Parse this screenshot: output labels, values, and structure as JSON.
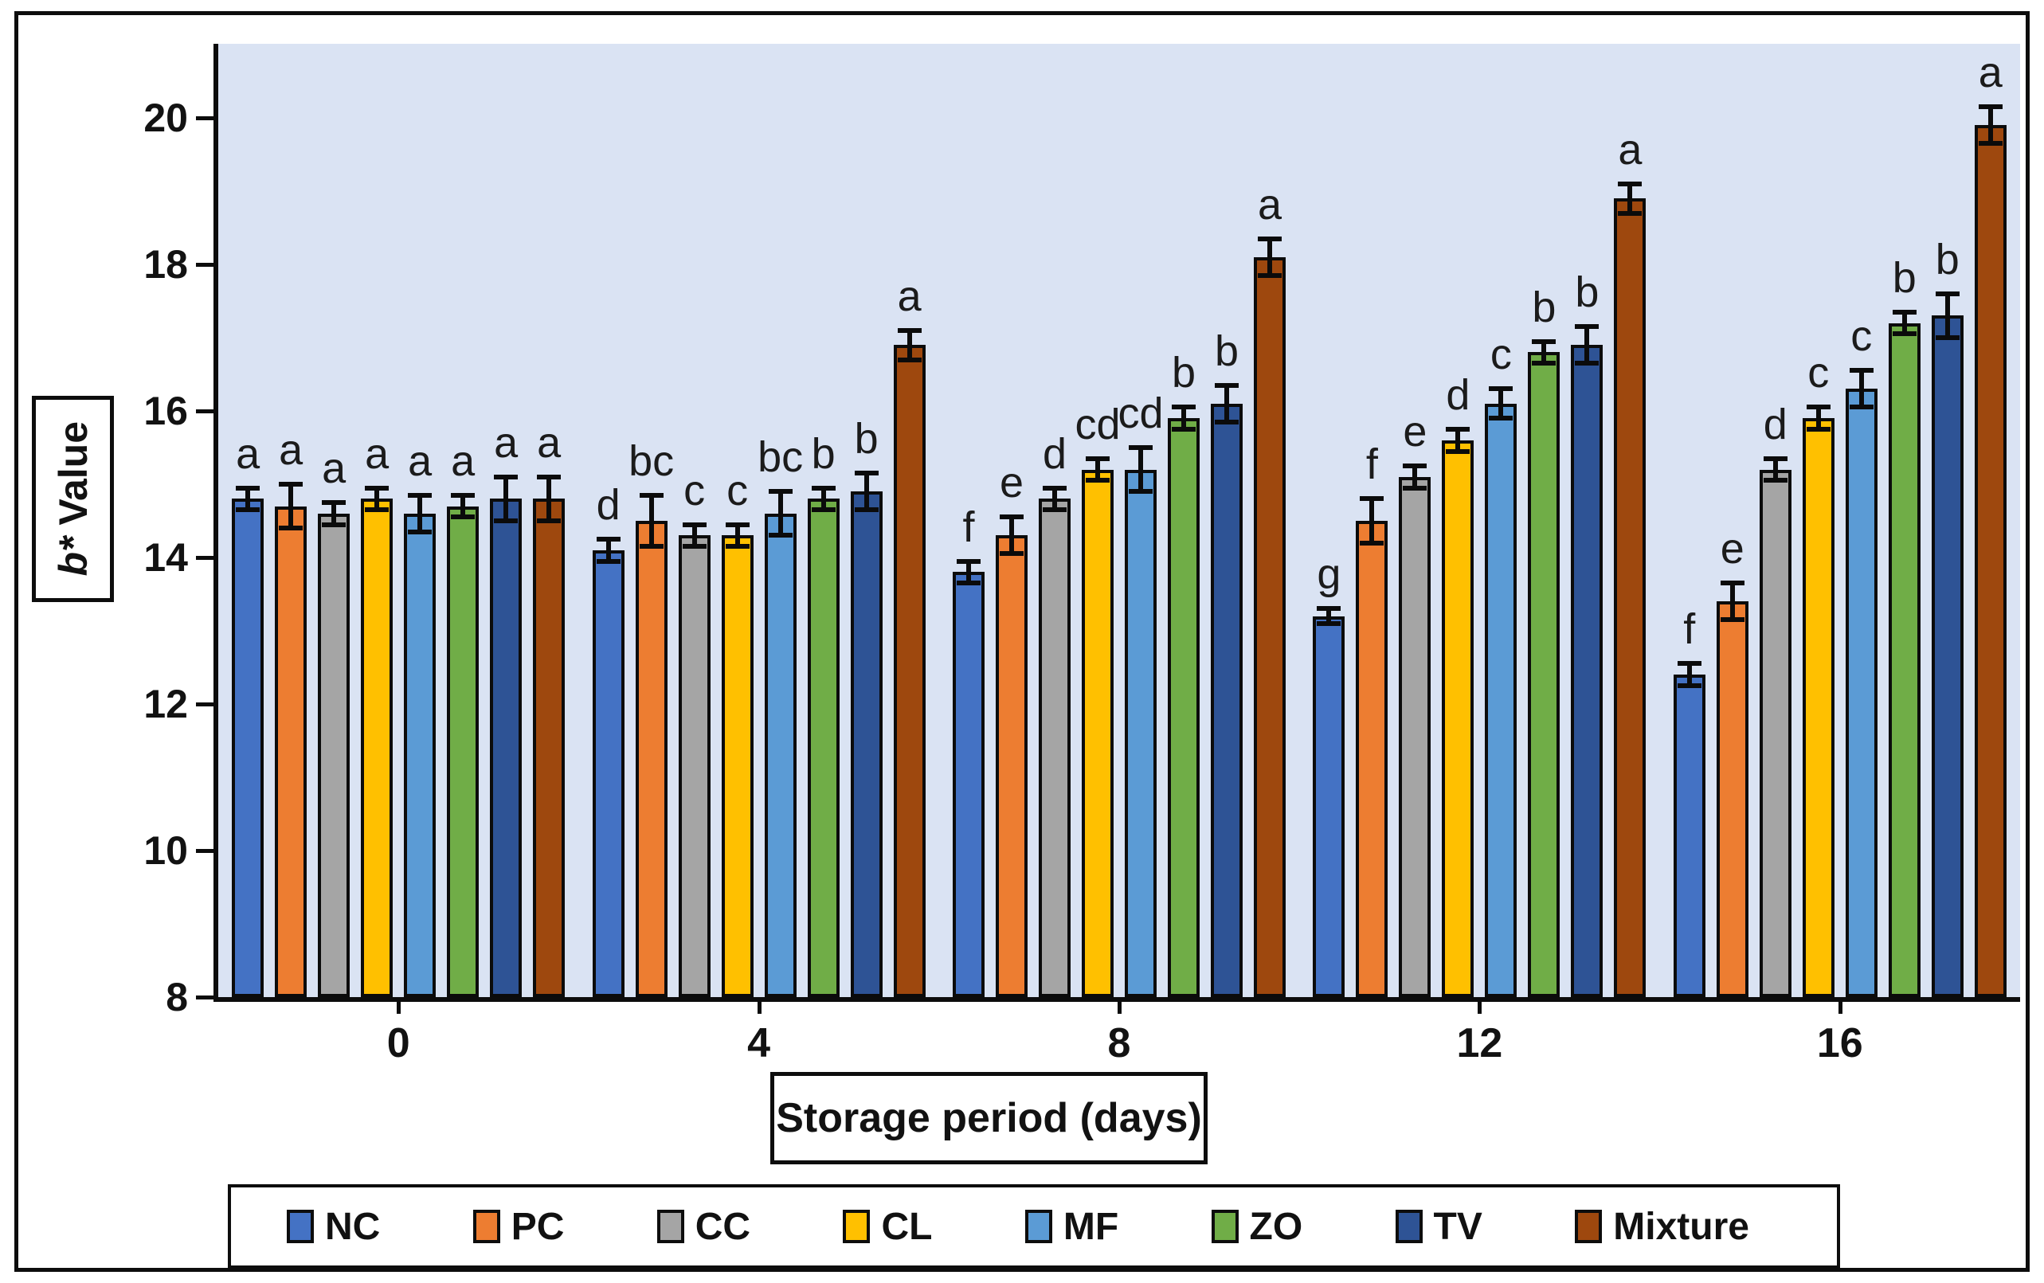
{
  "labels": {
    "y_title_italic": "b*",
    "y_title_rest": " Value",
    "x_title": "Storage period (days)"
  },
  "chart_data": {
    "type": "bar",
    "title": "",
    "xlabel": "Storage period (days)",
    "ylabel": "b* Value",
    "ylim": [
      8,
      21
    ],
    "yticks": [
      8,
      10,
      12,
      14,
      16,
      18,
      20
    ],
    "grid": false,
    "plot_bg": "#dae3f3",
    "legend_position": "bottom",
    "categories": [
      "0",
      "4",
      "8",
      "12",
      "16"
    ],
    "series": [
      {
        "name": "NC",
        "color": "#4472C4",
        "values": [
          14.8,
          14.1,
          13.8,
          13.2,
          12.4
        ],
        "errors": [
          0.15,
          0.15,
          0.15,
          0.1,
          0.15
        ],
        "letters": [
          "a",
          "d",
          "f",
          "g",
          "f"
        ]
      },
      {
        "name": "PC",
        "color": "#ED7D31",
        "values": [
          14.7,
          14.5,
          14.3,
          14.5,
          13.4
        ],
        "errors": [
          0.3,
          0.35,
          0.25,
          0.3,
          0.25
        ],
        "letters": [
          "a",
          "bc",
          "e",
          "f",
          "e"
        ]
      },
      {
        "name": "CC",
        "color": "#A5A5A5",
        "values": [
          14.6,
          14.3,
          14.8,
          15.1,
          15.2
        ],
        "errors": [
          0.15,
          0.15,
          0.15,
          0.15,
          0.15
        ],
        "letters": [
          "a",
          "c",
          "d",
          "e",
          "d"
        ]
      },
      {
        "name": "CL",
        "color": "#FFC000",
        "values": [
          14.8,
          14.3,
          15.2,
          15.6,
          15.9
        ],
        "errors": [
          0.15,
          0.15,
          0.15,
          0.15,
          0.15
        ],
        "letters": [
          "a",
          "c",
          "cd",
          "d",
          "c"
        ]
      },
      {
        "name": "MF",
        "color": "#5B9BD5",
        "values": [
          14.6,
          14.6,
          15.2,
          16.1,
          16.3
        ],
        "errors": [
          0.25,
          0.3,
          0.3,
          0.2,
          0.25
        ],
        "letters": [
          "a",
          "bc",
          "cd",
          "c",
          "c"
        ]
      },
      {
        "name": "ZO",
        "color": "#70AD47",
        "values": [
          14.7,
          14.8,
          15.9,
          16.8,
          17.2
        ],
        "errors": [
          0.15,
          0.15,
          0.15,
          0.15,
          0.15
        ],
        "letters": [
          "a",
          "b",
          "b",
          "b",
          "b"
        ]
      },
      {
        "name": "TV",
        "color": "#2E5395",
        "values": [
          14.8,
          14.9,
          16.1,
          16.9,
          17.3
        ],
        "errors": [
          0.3,
          0.25,
          0.25,
          0.25,
          0.3
        ],
        "letters": [
          "a",
          "b",
          "b",
          "b",
          "b"
        ]
      },
      {
        "name": "Mixture",
        "color": "#9E480E",
        "values": [
          14.8,
          16.9,
          18.1,
          18.9,
          19.9
        ],
        "errors": [
          0.3,
          0.2,
          0.25,
          0.2,
          0.25
        ],
        "letters": [
          "a",
          "a",
          "a",
          "a",
          "a"
        ]
      }
    ]
  }
}
